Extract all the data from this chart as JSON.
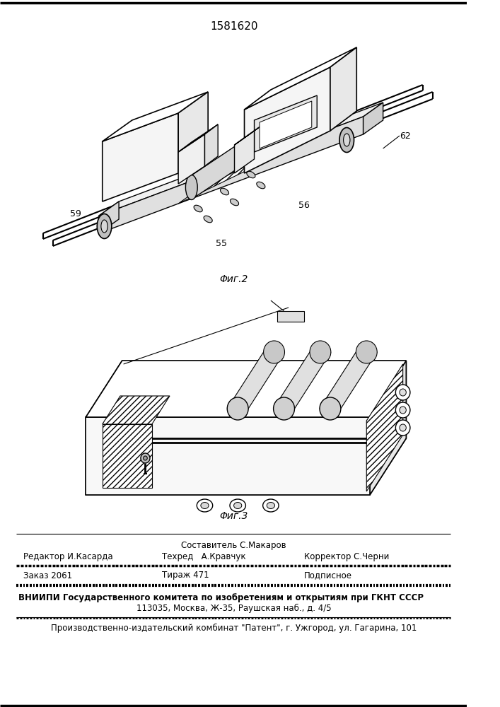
{
  "patent_number": "1581620",
  "fig2_label": "Φиг.2",
  "fig3_label": "Φиг.3",
  "footer_line1_center_top": "Составитель С.Макаров",
  "footer_line1_left": "Редактор И.Касарда",
  "footer_line1_center": "Техред   А.Кравчук",
  "footer_line1_right": "Корректор С.Черни",
  "footer_line2_left": "Заказ 2061",
  "footer_line2_center": "Тираж 471",
  "footer_line2_right": "Подписное",
  "footer_line3": "ВНИИПИ Государственного комитета по изобретениям и открытиям при ГКНТ СССР",
  "footer_line4": "113035, Москва, Ж-35, Раушская наб., д. 4/5",
  "footer_line5": "Производственно-издательский комбинат \"Патент\", г. Ужгород, ул. Гагарина, 101",
  "bg_color": "#ffffff",
  "text_color": "#000000"
}
